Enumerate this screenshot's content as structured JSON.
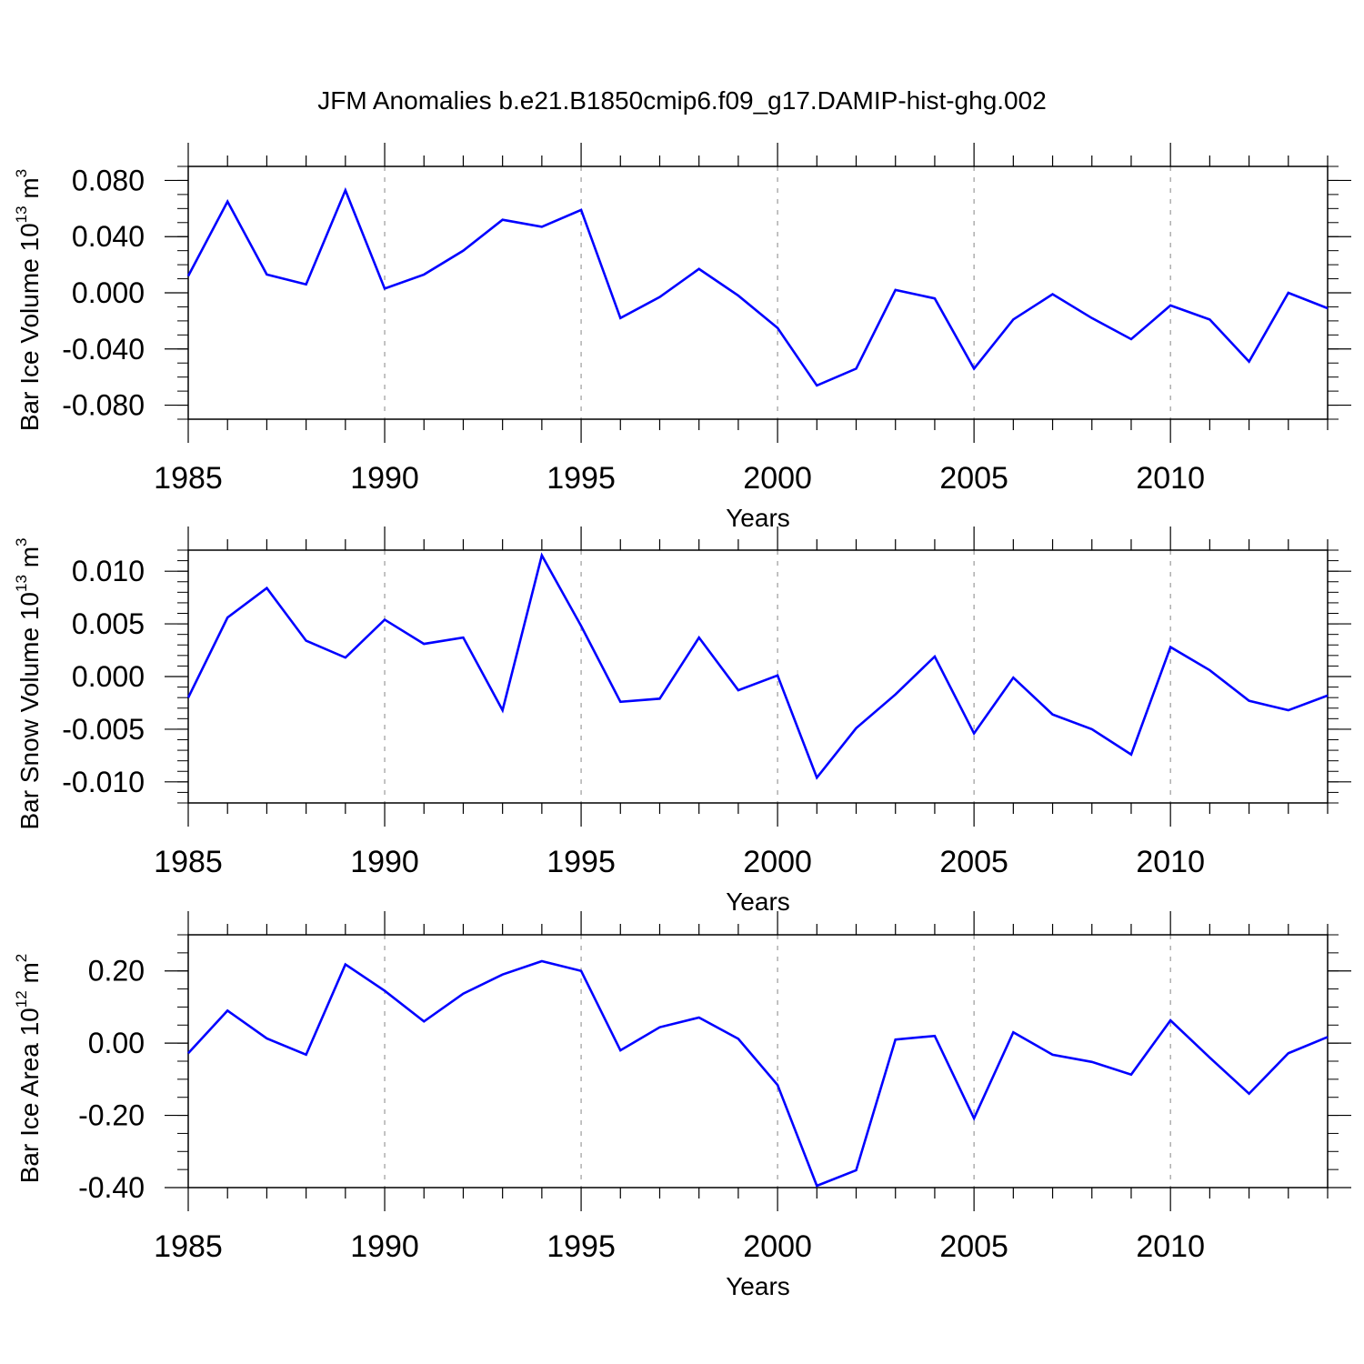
{
  "title": "JFM Anomalies b.e21.B1850cmip6.f09_g17.DAMIP-hist-ghg.002",
  "colors": {
    "line": "#0000ff",
    "frame": "#000000",
    "grid": "#9a9a9a"
  },
  "chart_data": [
    {
      "type": "line",
      "ylabel": {
        "text": "Bar Ice Volume 10",
        "exp": "13",
        "unit_text": " m",
        "unit_exp": "3"
      },
      "xlabel": "Years",
      "xlim": [
        1985,
        2014
      ],
      "ylim": [
        -0.09,
        0.09
      ],
      "xticks": [
        1985,
        1990,
        1995,
        2000,
        2005,
        2010
      ],
      "xtick_labels": [
        "1985",
        "1990",
        "1995",
        "2000",
        "2005",
        "2010"
      ],
      "yticks": [
        -0.08,
        -0.04,
        0.0,
        0.04,
        0.08
      ],
      "ytick_labels": [
        "-0.080",
        "-0.040",
        "0.000",
        "0.040",
        "0.080"
      ],
      "yminor_step": 0.01,
      "grid": "vertical dashed at major x ticks",
      "x": [
        1985,
        1986,
        1987,
        1988,
        1989,
        1990,
        1991,
        1992,
        1993,
        1994,
        1995,
        1996,
        1997,
        1998,
        1999,
        2000,
        2001,
        2002,
        2003,
        2004,
        2005,
        2006,
        2007,
        2008,
        2009,
        2010,
        2011,
        2012,
        2013,
        2014
      ],
      "series": [
        {
          "values": [
            0.012,
            0.065,
            0.013,
            0.006,
            0.073,
            0.003,
            0.013,
            0.03,
            0.052,
            0.047,
            0.059,
            -0.018,
            -0.003,
            0.017,
            -0.002,
            -0.025,
            -0.066,
            -0.054,
            0.002,
            -0.004,
            -0.054,
            -0.019,
            -0.001,
            -0.018,
            -0.033,
            -0.009,
            -0.019,
            -0.049,
            0.0,
            -0.011
          ]
        }
      ]
    },
    {
      "type": "line",
      "ylabel": {
        "text": "Bar Snow Volume 10",
        "exp": "13",
        "unit_text": " m",
        "unit_exp": "3"
      },
      "xlabel": "Years",
      "xlim": [
        1985,
        2014
      ],
      "ylim": [
        -0.012,
        0.012
      ],
      "xticks": [
        1985,
        1990,
        1995,
        2000,
        2005,
        2010
      ],
      "xtick_labels": [
        "1985",
        "1990",
        "1995",
        "2000",
        "2005",
        "2010"
      ],
      "yticks": [
        -0.01,
        -0.005,
        0.0,
        0.005,
        0.01
      ],
      "ytick_labels": [
        "-0.010",
        "-0.005",
        "0.000",
        "0.005",
        "0.010"
      ],
      "yminor_step": 0.001,
      "grid": "vertical dashed at major x ticks",
      "x": [
        1985,
        1986,
        1987,
        1988,
        1989,
        1990,
        1991,
        1992,
        1993,
        1994,
        1995,
        1996,
        1997,
        1998,
        1999,
        2000,
        2001,
        2002,
        2003,
        2004,
        2005,
        2006,
        2007,
        2008,
        2009,
        2010,
        2011,
        2012,
        2013,
        2014
      ],
      "series": [
        {
          "values": [
            -0.002,
            0.0056,
            0.0084,
            0.0034,
            0.0018,
            0.0054,
            0.0031,
            0.0037,
            -0.0032,
            0.0115,
            0.0048,
            -0.0024,
            -0.0021,
            0.0037,
            -0.0013,
            0.0001,
            -0.0096,
            -0.0049,
            -0.0017,
            0.0019,
            -0.0054,
            -0.0001,
            -0.0036,
            -0.005,
            -0.0074,
            0.0028,
            0.0006,
            -0.0023,
            -0.0032,
            -0.0018
          ]
        }
      ]
    },
    {
      "type": "line",
      "ylabel": {
        "text": "Bar Ice Area 10",
        "exp": "12",
        "unit_text": " m",
        "unit_exp": "2"
      },
      "xlabel": "Years",
      "xlim": [
        1985,
        2014
      ],
      "ylim": [
        -0.4,
        0.3
      ],
      "xticks": [
        1985,
        1990,
        1995,
        2000,
        2005,
        2010
      ],
      "xtick_labels": [
        "1985",
        "1990",
        "1995",
        "2000",
        "2005",
        "2010"
      ],
      "yticks": [
        -0.4,
        -0.2,
        0.0,
        0.2
      ],
      "ytick_labels": [
        "-0.40",
        "-0.20",
        "0.00",
        "0.20"
      ],
      "yminor_step": 0.05,
      "grid": "vertical dashed at major x ticks",
      "x": [
        1985,
        1986,
        1987,
        1988,
        1989,
        1990,
        1991,
        1992,
        1993,
        1994,
        1995,
        1996,
        1997,
        1998,
        1999,
        2000,
        2001,
        2002,
        2003,
        2004,
        2005,
        2006,
        2007,
        2008,
        2009,
        2010,
        2011,
        2012,
        2013,
        2014
      ],
      "series": [
        {
          "values": [
            -0.028,
            0.09,
            0.013,
            -0.032,
            0.218,
            0.145,
            0.06,
            0.137,
            0.19,
            0.227,
            0.2,
            -0.02,
            0.044,
            0.071,
            0.012,
            -0.116,
            -0.395,
            -0.352,
            0.01,
            0.02,
            -0.208,
            0.03,
            -0.032,
            -0.052,
            -0.087,
            0.063,
            -0.04,
            -0.14,
            -0.028,
            0.017
          ]
        }
      ]
    }
  ]
}
